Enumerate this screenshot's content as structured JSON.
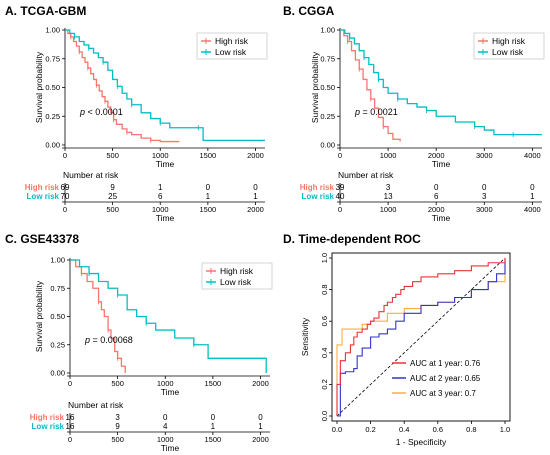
{
  "colors": {
    "high": "#F8766D",
    "low": "#00BFC4",
    "auc1": "#E8333A",
    "auc2": "#3333CC",
    "auc3": "#F5B041"
  },
  "km_common": {
    "ylabel": "Survival probability",
    "xlabel": "Time",
    "legend_high": "High risk",
    "legend_low": "Low risk",
    "yticks": [
      "0.00",
      "0.25",
      "0.50",
      "0.75",
      "1.00"
    ],
    "risk_header": "Number at risk",
    "risk_high_label": "High risk",
    "risk_low_label": "Low risk"
  },
  "panels": [
    {
      "title": "A. TCGA-GBM",
      "p_prefix": "p",
      "p_text": " < 0.0001",
      "xmax": 2100,
      "xticks": [
        0,
        500,
        1000,
        1500,
        2000
      ],
      "xtick_labels": [
        "0",
        "500",
        "1000",
        "1500",
        "2000"
      ],
      "risk_high": [
        "69",
        "9",
        "1",
        "0",
        "0"
      ],
      "risk_low": [
        "70",
        "25",
        "6",
        "1",
        "1"
      ]
    },
    {
      "title": "B. CGGA",
      "p_prefix": "p",
      "p_text": " = 0.0021",
      "xmax": 4200,
      "xticks": [
        0,
        1000,
        2000,
        3000,
        4000
      ],
      "xtick_labels": [
        "0",
        "1000",
        "2000",
        "3000",
        "4000"
      ],
      "risk_high": [
        "39",
        "3",
        "0",
        "0",
        "0"
      ],
      "risk_low": [
        "40",
        "13",
        "6",
        "3",
        "1"
      ]
    },
    {
      "title": "C. GSE43378",
      "p_prefix": "p",
      "p_text": " = 0.00068",
      "xmax": 2100,
      "xticks": [
        0,
        500,
        1000,
        1500,
        2000
      ],
      "xtick_labels": [
        "0",
        "500",
        "1000",
        "1500",
        "2000"
      ],
      "risk_high": [
        "16",
        "3",
        "0",
        "0",
        "0"
      ],
      "risk_low": [
        "16",
        "9",
        "4",
        "1",
        "1"
      ]
    }
  ],
  "roc": {
    "title": "D. Time-dependent ROC",
    "xlabel": "1 - Specificity",
    "ylabel": "Sensitivity",
    "ticks": [
      "0.0",
      "0.2",
      "0.4",
      "0.6",
      "0.8",
      "1.0"
    ],
    "legend": [
      "AUC at 1 year: 0.76",
      "AUC at 2 year: 0.65",
      "AUC at 3 year: 0.7"
    ]
  },
  "chart_data": [
    {
      "type": "line",
      "title": "A. TCGA-GBM",
      "xlabel": "Time",
      "ylabel": "Survival probability",
      "xlim": [
        0,
        2100
      ],
      "ylim": [
        0,
        1
      ],
      "legend_placement": "top-right",
      "series": [
        {
          "name": "High risk",
          "x": [
            0,
            30,
            60,
            90,
            120,
            150,
            180,
            210,
            240,
            270,
            300,
            330,
            360,
            390,
            420,
            450,
            480,
            510,
            540,
            600,
            650,
            700,
            800,
            900,
            1000,
            1200
          ],
          "y": [
            1.0,
            0.97,
            0.94,
            0.9,
            0.86,
            0.81,
            0.76,
            0.72,
            0.67,
            0.62,
            0.57,
            0.52,
            0.47,
            0.42,
            0.38,
            0.33,
            0.28,
            0.22,
            0.18,
            0.14,
            0.11,
            0.09,
            0.06,
            0.04,
            0.03,
            0.03
          ]
        },
        {
          "name": "Low risk",
          "x": [
            0,
            50,
            100,
            150,
            200,
            250,
            300,
            350,
            400,
            450,
            500,
            550,
            600,
            650,
            700,
            800,
            900,
            1000,
            1100,
            1300,
            1400,
            1450,
            2100
          ],
          "y": [
            1.0,
            0.97,
            0.94,
            0.9,
            0.87,
            0.84,
            0.8,
            0.76,
            0.72,
            0.65,
            0.57,
            0.51,
            0.45,
            0.4,
            0.35,
            0.28,
            0.23,
            0.19,
            0.15,
            0.15,
            0.15,
            0.04,
            0.04
          ]
        }
      ],
      "annotation": "p < 0.0001"
    },
    {
      "type": "line",
      "title": "B. CGGA",
      "xlabel": "Time",
      "ylabel": "Survival probability",
      "xlim": [
        0,
        4200
      ],
      "ylim": [
        0,
        1
      ],
      "legend_placement": "top-right",
      "series": [
        {
          "name": "High risk",
          "x": [
            0,
            80,
            160,
            240,
            320,
            400,
            480,
            560,
            640,
            720,
            800,
            900,
            1000,
            1100,
            1250
          ],
          "y": [
            1.0,
            0.95,
            0.9,
            0.82,
            0.74,
            0.66,
            0.57,
            0.48,
            0.4,
            0.32,
            0.24,
            0.16,
            0.1,
            0.05,
            0.03
          ]
        },
        {
          "name": "Low risk",
          "x": [
            0,
            100,
            200,
            300,
            400,
            500,
            600,
            700,
            800,
            900,
            1000,
            1200,
            1400,
            1600,
            1800,
            2000,
            2400,
            2800,
            3000,
            3200,
            3600,
            4200
          ],
          "y": [
            1.0,
            0.97,
            0.93,
            0.88,
            0.82,
            0.76,
            0.7,
            0.63,
            0.57,
            0.5,
            0.45,
            0.4,
            0.36,
            0.33,
            0.3,
            0.25,
            0.2,
            0.16,
            0.13,
            0.09,
            0.09,
            0.09
          ]
        }
      ],
      "annotation": "p = 0.0021"
    },
    {
      "type": "line",
      "title": "C. GSE43378",
      "xlabel": "Time",
      "ylabel": "Survival probability",
      "xlim": [
        0,
        2100
      ],
      "ylim": [
        0,
        1
      ],
      "legend_placement": "top-right",
      "series": [
        {
          "name": "High risk",
          "x": [
            0,
            60,
            120,
            180,
            240,
            300,
            330,
            360,
            400,
            430,
            470,
            500,
            540,
            580
          ],
          "y": [
            1.0,
            0.94,
            0.88,
            0.81,
            0.75,
            0.63,
            0.56,
            0.5,
            0.38,
            0.31,
            0.19,
            0.13,
            0.06,
            0.0
          ]
        },
        {
          "name": "Low risk",
          "x": [
            0,
            100,
            200,
            300,
            400,
            500,
            600,
            700,
            800,
            900,
            1100,
            1300,
            1450,
            2000,
            2060
          ],
          "y": [
            1.0,
            0.94,
            0.88,
            0.81,
            0.75,
            0.69,
            0.56,
            0.5,
            0.44,
            0.38,
            0.31,
            0.25,
            0.13,
            0.13,
            0.0
          ]
        }
      ],
      "annotation": "p = 0.00068"
    },
    {
      "type": "line",
      "title": "D. Time-dependent ROC",
      "xlabel": "1 - Specificity",
      "ylabel": "Sensitivity",
      "xlim": [
        0,
        1
      ],
      "ylim": [
        0,
        1
      ],
      "legend_placement": "bottom-right",
      "series": [
        {
          "name": "AUC at 1 year: 0.76",
          "x": [
            0.0,
            0.0,
            0.02,
            0.02,
            0.05,
            0.08,
            0.1,
            0.12,
            0.15,
            0.18,
            0.2,
            0.22,
            0.25,
            0.28,
            0.3,
            0.33,
            0.35,
            0.38,
            0.4,
            0.45,
            0.5,
            0.55,
            0.6,
            0.7,
            0.8,
            0.9,
            1.0
          ],
          "y": [
            0.0,
            0.2,
            0.3,
            0.35,
            0.4,
            0.45,
            0.5,
            0.53,
            0.55,
            0.58,
            0.6,
            0.62,
            0.66,
            0.7,
            0.72,
            0.75,
            0.77,
            0.8,
            0.82,
            0.85,
            0.88,
            0.88,
            0.9,
            0.92,
            0.95,
            0.97,
            1.0
          ]
        },
        {
          "name": "AUC at 2 year: 0.65",
          "x": [
            0.0,
            0.02,
            0.05,
            0.1,
            0.12,
            0.15,
            0.2,
            0.25,
            0.3,
            0.35,
            0.4,
            0.5,
            0.6,
            0.7,
            0.8,
            0.9,
            0.95,
            1.0
          ],
          "y": [
            0.0,
            0.27,
            0.28,
            0.3,
            0.38,
            0.43,
            0.5,
            0.52,
            0.55,
            0.6,
            0.65,
            0.7,
            0.72,
            0.75,
            0.8,
            0.85,
            0.9,
            1.0
          ]
        },
        {
          "name": "AUC at 3 year: 0.7",
          "x": [
            0.0,
            0.0,
            0.03,
            0.05,
            0.1,
            0.15,
            0.2,
            0.3,
            0.4,
            0.5,
            0.6,
            0.7,
            0.8,
            0.9,
            0.95,
            0.97,
            1.0
          ],
          "y": [
            0.0,
            0.45,
            0.55,
            0.55,
            0.55,
            0.58,
            0.6,
            0.65,
            0.68,
            0.7,
            0.72,
            0.75,
            0.8,
            0.85,
            0.85,
            0.85,
            1.0
          ]
        }
      ]
    }
  ]
}
